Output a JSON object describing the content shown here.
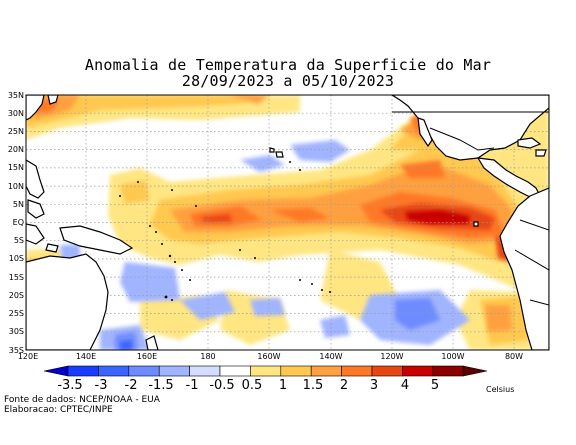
{
  "title_line1": "Anomalia de Temperatura da Superficie do Mar",
  "title_line2": "28/09/2023 a 05/10/2023",
  "lat_labels": [
    "35N",
    "30N",
    "25N",
    "20N",
    "15N",
    "10N",
    "5N",
    "EQ",
    "5S",
    "10S",
    "15S",
    "20S",
    "25S",
    "30S",
    "35S"
  ],
  "lon_labels": [
    "120E",
    "140E",
    "160E",
    "180",
    "160W",
    "140W",
    "120W",
    "100W",
    "80W"
  ],
  "colorbar": {
    "labels": [
      "-3.5",
      "-3",
      "-2",
      "-1.5",
      "-1",
      "-0.5",
      "0.5",
      "1",
      "1.5",
      "2",
      "3",
      "4",
      "5"
    ],
    "colors": [
      "#0000cc",
      "#1a3cff",
      "#3c64ff",
      "#6e8cff",
      "#a0b4ff",
      "#ffffff",
      "#ffe682",
      "#ffc850",
      "#ffa040",
      "#ff7828",
      "#e64614",
      "#c80000",
      "#8c0000"
    ],
    "unit": "Celsius"
  },
  "credit_source": "Fonte de dados: NCEP/NOAA - EUA",
  "credit_author": "Elaboracao: CPTEC/INPE"
}
